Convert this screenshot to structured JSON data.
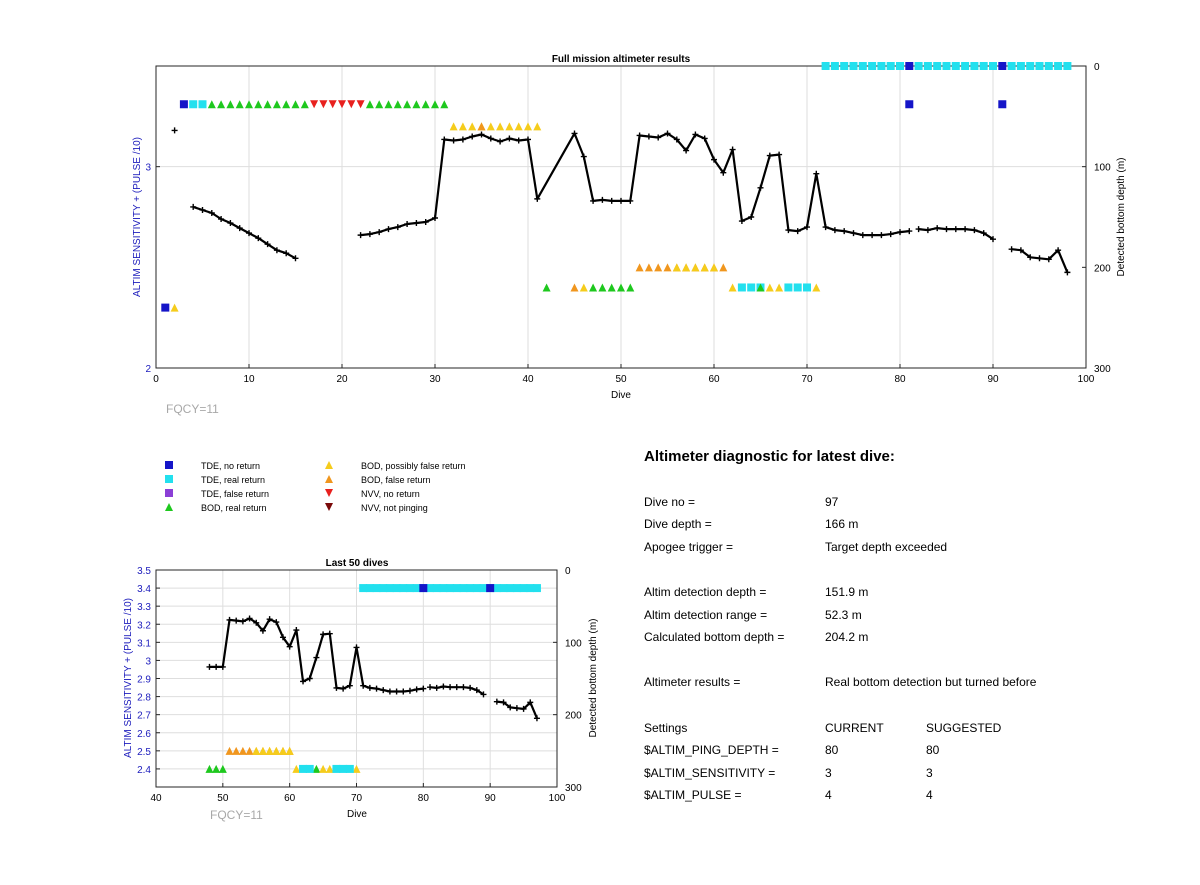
{
  "colors": {
    "tde_no_return": "#1515c8",
    "tde_real_return": "#22e0ee",
    "tde_false_return": "#8b3fd6",
    "bod_real_return": "#1ec81e",
    "bod_possibly_false": "#f5cc1c",
    "bod_false_return": "#f0961e",
    "nvv_no_return": "#e8201e",
    "nvv_not_pinging": "#7a0a0a",
    "left_axis_text": "#1c1cbc",
    "grid": "#dedede",
    "line": "#000000"
  },
  "legend": {
    "items": [
      {
        "label": "TDE, no return",
        "marker": "square",
        "color": "#1515c8"
      },
      {
        "label": "TDE, real return",
        "marker": "square",
        "color": "#22e0ee"
      },
      {
        "label": "TDE, false return",
        "marker": "square",
        "color": "#8b3fd6"
      },
      {
        "label": "BOD, real return",
        "marker": "triangle-up",
        "color": "#1ec81e"
      },
      {
        "label": "BOD, possibly false return",
        "marker": "triangle-up",
        "color": "#f5cc1c"
      },
      {
        "label": "BOD, false return",
        "marker": "triangle-up",
        "color": "#f0961e"
      },
      {
        "label": "NVV, no return",
        "marker": "triangle-down",
        "color": "#e8201e"
      },
      {
        "label": "NVV, not pinging",
        "marker": "triangle-down",
        "color": "#7a0a0a"
      }
    ]
  },
  "diagnostic": {
    "heading": "Altimeter diagnostic for latest dive:",
    "rows1": [
      {
        "label": "Dive no =",
        "value": "97"
      },
      {
        "label": "Dive depth =",
        "value": "166 m"
      },
      {
        "label": "Apogee trigger =",
        "value": "Target depth exceeded"
      }
    ],
    "rows2": [
      {
        "label": "Altim detection depth =",
        "value": "151.9 m"
      },
      {
        "label": "Altim detection range =",
        "value": "52.3 m"
      },
      {
        "label": "Calculated bottom depth =",
        "value": "204.2 m"
      }
    ],
    "results_label": "Altimeter results =",
    "results_value": "Real bottom detection but turned before",
    "settings_header": {
      "label": "Settings",
      "current": "CURRENT",
      "suggested": "SUGGESTED"
    },
    "settings": [
      {
        "label": "$ALTIM_PING_DEPTH =",
        "current": "80",
        "suggested": "80"
      },
      {
        "label": "$ALTIM_SENSITIVITY =",
        "current": "3",
        "suggested": "3"
      },
      {
        "label": "$ALTIM_PULSE =",
        "current": "4",
        "suggested": "4"
      }
    ]
  },
  "chart_data": [
    {
      "type": "line",
      "title": "Full mission altimeter results",
      "xlabel": "Dive",
      "ylabel": "ALTIM SENSITIVITY + (PULSE /10)",
      "ylabel_right": "Detected bottom depth (m)",
      "annotation": "FQCY=11",
      "xlim": [
        0,
        100
      ],
      "ylim": [
        2,
        3.5
      ],
      "ylim_right_reversed": [
        0,
        300
      ],
      "x_ticks": [
        0,
        10,
        20,
        30,
        40,
        50,
        60,
        70,
        80,
        90,
        100
      ],
      "y_ticks": [
        2,
        3
      ],
      "y_ticks_right": [
        0,
        100,
        200,
        300
      ],
      "grid": true,
      "series": [
        {
          "axis": "right",
          "segments": [
            [
              [
                2,
                64
              ]
            ],
            [
              [
                4,
                140
              ],
              [
                5,
                143
              ],
              [
                6,
                146
              ],
              [
                7,
                152
              ],
              [
                8,
                156
              ],
              [
                9,
                161
              ],
              [
                10,
                166
              ],
              [
                11,
                171
              ],
              [
                12,
                177
              ],
              [
                13,
                183
              ],
              [
                14,
                186
              ],
              [
                15,
                191
              ]
            ],
            [
              [
                22,
                168
              ],
              [
                23,
                167
              ],
              [
                24,
                165
              ],
              [
                25,
                162
              ],
              [
                26,
                160
              ],
              [
                27,
                157
              ],
              [
                28,
                156
              ],
              [
                29,
                155
              ],
              [
                30,
                151
              ],
              [
                31,
                73
              ],
              [
                32,
                74
              ],
              [
                33,
                73
              ],
              [
                34,
                70
              ],
              [
                35,
                68
              ],
              [
                36,
                72
              ],
              [
                37,
                75
              ],
              [
                38,
                72
              ],
              [
                39,
                74
              ],
              [
                40,
                73
              ],
              [
                41,
                132
              ],
              [
                45,
                67
              ],
              [
                46,
                90
              ],
              [
                47,
                134
              ],
              [
                48,
                133
              ],
              [
                49,
                134
              ],
              [
                50,
                134
              ],
              [
                51,
                134
              ],
              [
                52,
                69
              ],
              [
                53,
                70
              ],
              [
                54,
                71
              ],
              [
                55,
                67
              ],
              [
                56,
                73
              ],
              [
                57,
                84
              ],
              [
                58,
                68
              ],
              [
                59,
                72
              ],
              [
                60,
                93
              ],
              [
                61,
                106
              ],
              [
                62,
                83
              ],
              [
                63,
                154
              ],
              [
                64,
                150
              ],
              [
                65,
                121
              ],
              [
                66,
                89
              ],
              [
                67,
                88
              ],
              [
                68,
                163
              ],
              [
                69,
                164
              ],
              [
                70,
                160
              ],
              [
                71,
                107
              ],
              [
                72,
                160
              ],
              [
                73,
                163
              ],
              [
                74,
                164
              ],
              [
                75,
                166
              ],
              [
                76,
                168
              ],
              [
                77,
                168
              ],
              [
                78,
                168
              ],
              [
                79,
                167
              ],
              [
                80,
                165
              ],
              [
                81,
                164
              ]
            ],
            [
              [
                82,
                162
              ],
              [
                83,
                163
              ],
              [
                84,
                161
              ],
              [
                85,
                162
              ],
              [
                86,
                162
              ],
              [
                87,
                162
              ],
              [
                88,
                163
              ],
              [
                89,
                166
              ],
              [
                90,
                172
              ]
            ],
            [
              [
                92,
                182
              ],
              [
                93,
                183
              ],
              [
                94,
                190
              ],
              [
                95,
                191
              ],
              [
                96,
                192
              ],
              [
                97,
                183
              ],
              [
                98,
                205
              ]
            ]
          ]
        }
      ],
      "markers": [
        {
          "kind": "tde_no_return",
          "y": 3.31,
          "x": [
            3,
            81,
            91
          ]
        },
        {
          "kind": "tde_real_return",
          "y": 3.31,
          "x": [
            4,
            5
          ]
        },
        {
          "kind": "tde_real_return",
          "y": 3.5,
          "x": [
            72,
            73,
            74,
            75,
            76,
            77,
            78,
            79,
            80,
            82,
            83,
            84,
            85,
            86,
            87,
            88,
            89,
            90,
            92,
            93,
            94,
            95,
            96,
            97,
            98
          ]
        },
        {
          "kind": "tde_no_return",
          "y": 3.5,
          "x": [
            81,
            91
          ]
        },
        {
          "kind": "bod_real_return",
          "y": 3.31,
          "x": [
            6,
            7,
            8,
            9,
            10,
            11,
            12,
            13,
            14,
            15,
            16,
            23,
            24,
            25,
            26,
            27,
            28,
            29,
            30,
            31
          ]
        },
        {
          "kind": "nvv_no_return",
          "y": 3.31,
          "x": [
            17,
            18,
            19,
            20,
            21,
            22
          ]
        },
        {
          "kind": "bod_possibly_false",
          "y": 3.2,
          "x": [
            32,
            33,
            34,
            35,
            36,
            37,
            38,
            39,
            40,
            41
          ]
        },
        {
          "kind": "bod_false_return",
          "y": 3.2,
          "x": [
            35
          ]
        },
        {
          "kind": "bod_false_return",
          "y": 2.5,
          "x": [
            52,
            53,
            54,
            55,
            56,
            57,
            58,
            59,
            60,
            61
          ]
        },
        {
          "kind": "bod_possibly_false",
          "y": 2.5,
          "x": [
            56,
            57,
            58,
            59,
            60
          ]
        },
        {
          "kind": "bod_real_return",
          "y": 2.4,
          "x": [
            42,
            47,
            48,
            49,
            50,
            51
          ]
        },
        {
          "kind": "bod_false_return",
          "y": 2.4,
          "x": [
            45
          ]
        },
        {
          "kind": "bod_possibly_false",
          "y": 2.4,
          "x": [
            46,
            62,
            66,
            67,
            71
          ]
        },
        {
          "kind": "tde_real_return",
          "y": 2.4,
          "x": [
            63,
            64,
            65,
            68,
            69,
            70
          ]
        },
        {
          "kind": "bod_real_return",
          "y": 2.4,
          "x": [
            65
          ]
        },
        {
          "kind": "tde_no_return",
          "y": 2.3,
          "x": [
            1
          ]
        },
        {
          "kind": "bod_possibly_false",
          "y": 2.3,
          "x": [
            2
          ]
        }
      ]
    },
    {
      "type": "line",
      "title": "Last 50 dives",
      "xlabel": "Dive",
      "ylabel": "ALTIM SENSITIVITY + (PULSE /10)",
      "ylabel_right": "Detected bottom depth (m)",
      "annotation": "FQCY=11",
      "xlim": [
        40,
        100
      ],
      "ylim": [
        2.3,
        3.5
      ],
      "ylim_right_reversed": [
        0,
        300
      ],
      "x_ticks": [
        40,
        50,
        60,
        70,
        80,
        90,
        100
      ],
      "y_ticks": [
        2.4,
        2.5,
        2.6,
        2.7,
        2.8,
        2.9,
        3,
        3.1,
        3.2,
        3.3,
        3.4,
        3.5
      ],
      "y_ticks_right": [
        0,
        100,
        200,
        300
      ],
      "grid": true,
      "series": [
        {
          "axis": "right",
          "segments": [
            [
              [
                48,
                134
              ],
              [
                49,
                134
              ],
              [
                50,
                134
              ],
              [
                51,
                69
              ],
              [
                52,
                70
              ],
              [
                53,
                71
              ],
              [
                54,
                67
              ],
              [
                55,
                73
              ],
              [
                56,
                84
              ],
              [
                57,
                68
              ],
              [
                58,
                72
              ],
              [
                59,
                93
              ],
              [
                60,
                106
              ],
              [
                61,
                83
              ],
              [
                62,
                154
              ],
              [
                63,
                150
              ],
              [
                64,
                121
              ],
              [
                65,
                89
              ],
              [
                66,
                88
              ],
              [
                67,
                163
              ],
              [
                68,
                164
              ],
              [
                69,
                160
              ],
              [
                70,
                107
              ],
              [
                71,
                160
              ],
              [
                72,
                163
              ],
              [
                73,
                164
              ],
              [
                74,
                166
              ],
              [
                75,
                168
              ],
              [
                76,
                168
              ],
              [
                77,
                168
              ],
              [
                78,
                167
              ],
              [
                79,
                165
              ],
              [
                80,
                164
              ]
            ],
            [
              [
                81,
                162
              ],
              [
                82,
                163
              ],
              [
                83,
                161
              ],
              [
                84,
                162
              ],
              [
                85,
                162
              ],
              [
                86,
                162
              ],
              [
                87,
                163
              ],
              [
                88,
                166
              ],
              [
                89,
                172
              ]
            ],
            [
              [
                91,
                182
              ],
              [
                92,
                183
              ],
              [
                93,
                190
              ],
              [
                94,
                191
              ],
              [
                95,
                192
              ],
              [
                96,
                183
              ],
              [
                97,
                205
              ]
            ]
          ]
        }
      ],
      "markers": [
        {
          "kind": "tde_real_return",
          "y": 3.4,
          "x": [
            71,
            72,
            73,
            74,
            75,
            76,
            77,
            78,
            79,
            80,
            81,
            82,
            83,
            84,
            85,
            86,
            87,
            88,
            89,
            90,
            91,
            92,
            93,
            94,
            95,
            96,
            97
          ]
        },
        {
          "kind": "tde_no_return",
          "y": 3.4,
          "x": [
            80,
            90
          ]
        },
        {
          "kind": "bod_false_return",
          "y": 2.5,
          "x": [
            51,
            52,
            53,
            54,
            55,
            56,
            57,
            58,
            59,
            60
          ]
        },
        {
          "kind": "bod_possibly_false",
          "y": 2.5,
          "x": [
            55,
            56,
            57,
            58,
            59,
            60
          ]
        },
        {
          "kind": "bod_real_return",
          "y": 2.4,
          "x": [
            48,
            49,
            50,
            64
          ]
        },
        {
          "kind": "bod_possibly_false",
          "y": 2.4,
          "x": [
            61,
            65,
            66,
            70
          ]
        },
        {
          "kind": "tde_real_return",
          "y": 2.4,
          "x": [
            62,
            63,
            67,
            68,
            69
          ]
        }
      ]
    }
  ]
}
